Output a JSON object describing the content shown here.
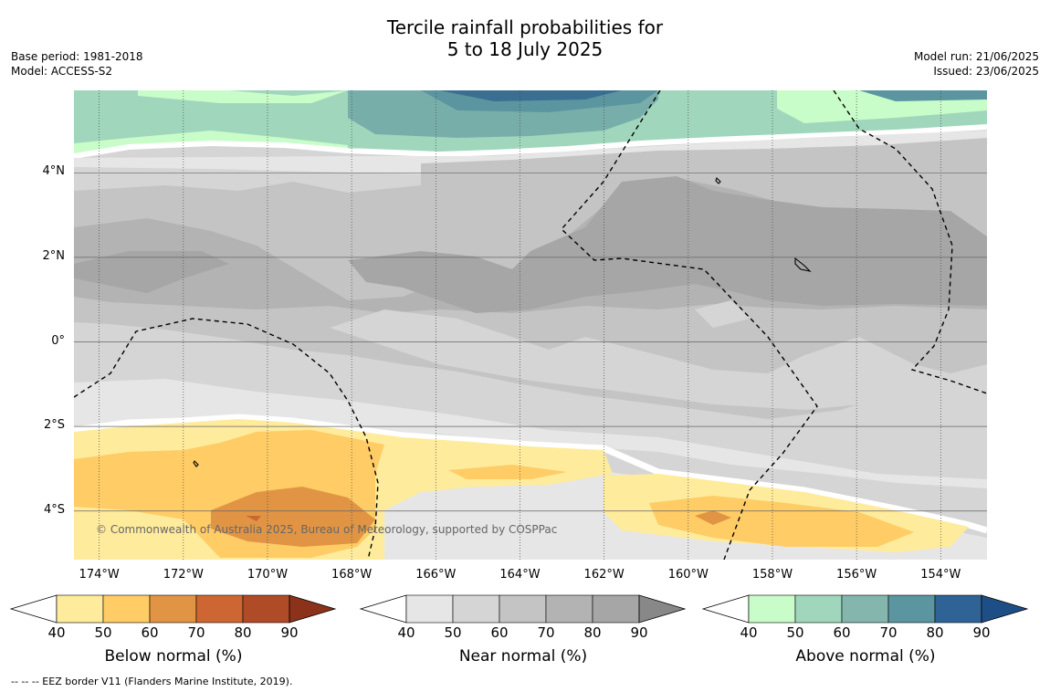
{
  "title": {
    "line1": "Tercile rainfall probabilities for",
    "line2": "5 to 18 July 2025"
  },
  "meta_left": {
    "base_period": "Base period: 1981-2018",
    "model": "Model: ACCESS-S2"
  },
  "meta_right": {
    "model_run": "Model run: 21/06/2025",
    "issued": "Issued: 23/06/2025"
  },
  "map": {
    "lon_range": [
      -174.6,
      -152.9
    ],
    "lat_range": [
      -5.15,
      5.95
    ],
    "lat_ticks": [
      {
        "value": 4,
        "label": "4°N"
      },
      {
        "value": 2,
        "label": "2°N"
      },
      {
        "value": 0,
        "label": "0°"
      },
      {
        "value": -2,
        "label": "2°S"
      },
      {
        "value": -4,
        "label": "4°S"
      }
    ],
    "lon_ticks": [
      {
        "value": -174,
        "label": "174°W"
      },
      {
        "value": -172,
        "label": "172°W"
      },
      {
        "value": -170,
        "label": "170°W"
      },
      {
        "value": -168,
        "label": "168°W"
      },
      {
        "value": -166,
        "label": "166°W"
      },
      {
        "value": -164,
        "label": "164°W"
      },
      {
        "value": -162,
        "label": "162°W"
      },
      {
        "value": -160,
        "label": "160°W"
      },
      {
        "value": -158,
        "label": "158°W"
      },
      {
        "value": -156,
        "label": "156°W"
      },
      {
        "value": -154,
        "label": "154°W"
      }
    ],
    "copyright": "© Commonwealth of Australia 2025, Bureau of Meteorology, supported by COSPPac",
    "colors": {
      "near_40": "#e6e6e6",
      "near_50": "#d5d5d5",
      "near_60": "#c4c4c4",
      "near_70": "#b3b3b3",
      "near_80": "#a6a6a6",
      "below_40": "#ffeb9c",
      "below_50": "#ffcc66",
      "below_60": "#e19544",
      "below_70": "#cd6633",
      "above_40": "#c8fcc8",
      "above_50": "#a0d6bc",
      "above_60": "#78aeaa",
      "above_70": "#5b95a0",
      "above_80": "#3b6f91"
    }
  },
  "colorbars": [
    {
      "title": "Below normal (%)",
      "ticks": [
        "40",
        "50",
        "60",
        "70",
        "80",
        "90"
      ],
      "colors": [
        "#ffeb9c",
        "#ffcc66",
        "#e19544",
        "#cd6633",
        "#b04b28"
      ],
      "arrow_color": "#8c321b"
    },
    {
      "title": "Near normal (%)",
      "ticks": [
        "40",
        "50",
        "60",
        "70",
        "80",
        "90"
      ],
      "colors": [
        "#e6e6e6",
        "#d5d5d5",
        "#c4c4c4",
        "#b3b3b3",
        "#a6a6a6"
      ],
      "arrow_color": "#888888"
    },
    {
      "title": "Above normal (%)",
      "ticks": [
        "40",
        "50",
        "60",
        "70",
        "80",
        "90"
      ],
      "colors": [
        "#c8fcc8",
        "#a0d6bc",
        "#84b6ae",
        "#5b95a0",
        "#2f6396"
      ],
      "arrow_color": "#1d4f86"
    }
  ],
  "footnote": "-- -- -- EEZ border V11 (Flanders Marine Institute, 2019)."
}
